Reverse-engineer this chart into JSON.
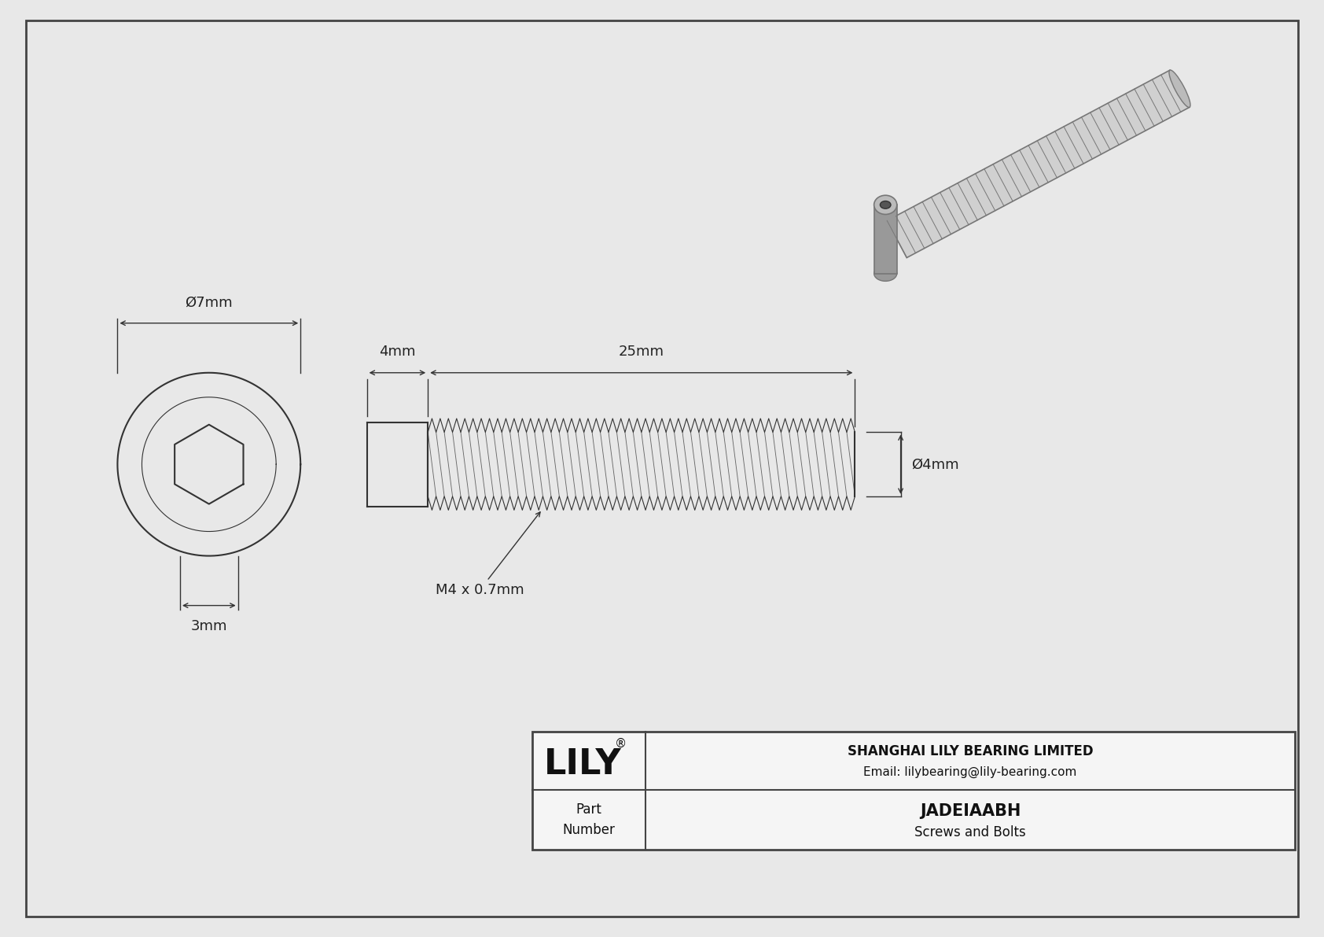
{
  "bg_color": "#e8e8e8",
  "drawing_bg": "#ffffff",
  "border_color": "#444444",
  "line_color": "#333333",
  "dim_color": "#333333",
  "text_color": "#222222",
  "title": "JADEIAABH",
  "subtitle": "Screws and Bolts",
  "company": "SHANGHAI LILY BEARING LIMITED",
  "email": "Email: lilybearing@lily-bearing.com",
  "part_label": "Part\nNumber",
  "logo_text": "LILY",
  "logo_reg": "®",
  "dim_head_length": "4mm",
  "dim_thread_length": "25mm",
  "dim_outer_diameter": "Ø7mm",
  "dim_head_height": "3mm",
  "dim_thread_diameter": "Ø4mm",
  "dim_thread_label": "M4 x 0.7mm"
}
